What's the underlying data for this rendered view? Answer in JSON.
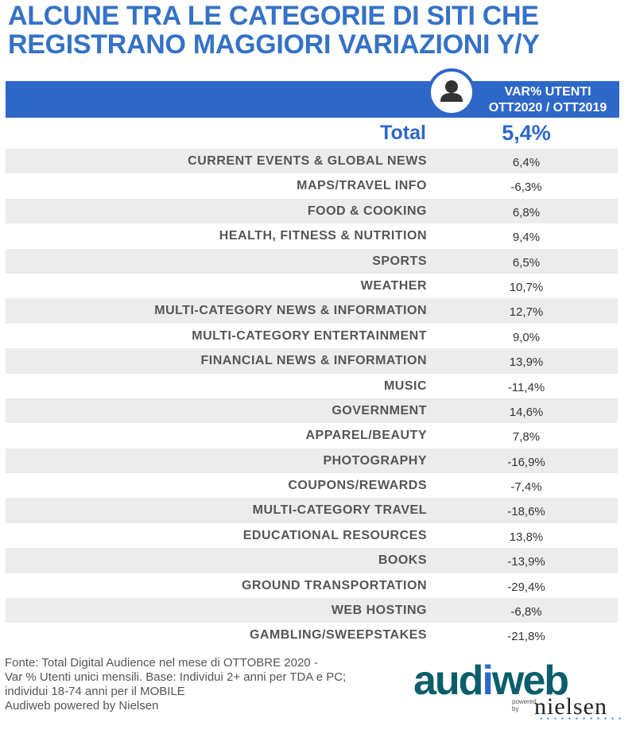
{
  "title_line1": "ALCUNE TRA LE CATEGORIE DI SITI CHE",
  "title_line2": "REGISTRANO MAGGIORI VARIAZIONI Y/Y",
  "header": {
    "col_line1": "VAR% UTENTI",
    "col_line2": "OTT2020 / OTT2019",
    "icon": "user-icon"
  },
  "total": {
    "label": "Total",
    "value": "5,4%"
  },
  "chart_data": {
    "type": "table",
    "columns": [
      "",
      "VAR% UTENTI OTT2020 / OTT2019"
    ],
    "rows": [
      {
        "category": "CURRENT EVENTS & GLOBAL NEWS",
        "value": "6,4%"
      },
      {
        "category": "MAPS/TRAVEL INFO",
        "value": "-6,3%"
      },
      {
        "category": "FOOD & COOKING",
        "value": "6,8%"
      },
      {
        "category": "HEALTH, FITNESS & NUTRITION",
        "value": "9,4%"
      },
      {
        "category": "SPORTS",
        "value": "6,5%"
      },
      {
        "category": "WEATHER",
        "value": "10,7%"
      },
      {
        "category": "MULTI-CATEGORY NEWS & INFORMATION",
        "value": "12,7%"
      },
      {
        "category": "MULTI-CATEGORY ENTERTAINMENT",
        "value": "9,0%"
      },
      {
        "category": "FINANCIAL NEWS & INFORMATION",
        "value": "13,9%"
      },
      {
        "category": "MUSIC",
        "value": "-11,4%"
      },
      {
        "category": "GOVERNMENT",
        "value": "14,6%"
      },
      {
        "category": "APPAREL/BEAUTY",
        "value": "7,8%"
      },
      {
        "category": "PHOTOGRAPHY",
        "value": "-16,9%"
      },
      {
        "category": "COUPONS/REWARDS",
        "value": "-7,4%"
      },
      {
        "category": "MULTI-CATEGORY TRAVEL",
        "value": "-18,6%"
      },
      {
        "category": "EDUCATIONAL RESOURCES",
        "value": "13,8%"
      },
      {
        "category": "BOOKS",
        "value": "-13,9%"
      },
      {
        "category": "GROUND TRANSPORTATION",
        "value": "-29,4%"
      },
      {
        "category": "WEB HOSTING",
        "value": "-6,8%"
      },
      {
        "category": "GAMBLING/SWEEPSTAKES",
        "value": "-21,8%"
      }
    ]
  },
  "footer": {
    "line1": "Fonte: Total Digital Audience nel mese di OTTOBRE 2020 -",
    "line2": "Var % Utenti unici mensili. Base: Individui 2+ anni per TDA e PC;",
    "line3": "individui 18-74 anni per il MOBILE",
    "line4": "Audiweb powered by Nielsen"
  },
  "logo": {
    "brand_part1": "aud",
    "brand_part2": "i",
    "brand_part3": "web",
    "powered_line1": "powered",
    "powered_line2": "by",
    "partner": "nielsen"
  },
  "colors": {
    "accent": "#2d67c8",
    "title": "#3572c6",
    "row_shade": "#ececec",
    "logo_teal": "#0b5e6b"
  }
}
